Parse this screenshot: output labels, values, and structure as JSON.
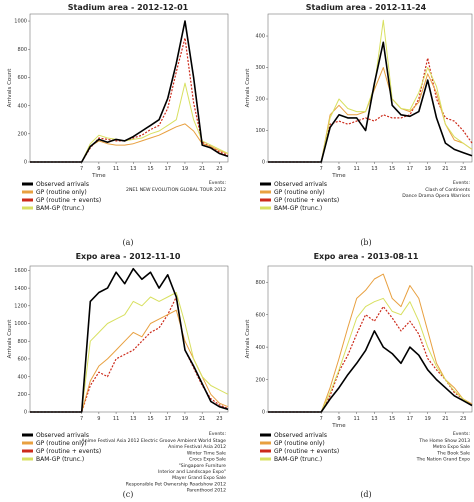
{
  "colors": {
    "observed": "#000000",
    "routine": "#e8a040",
    "events": "#cc2a1a",
    "bam": "#d8e060"
  },
  "chart_data": [
    {
      "type": "line",
      "title": "Stadium area - 2012-12-01",
      "caption": "(a)",
      "xlabel": "Time",
      "ylabel": "Arrivals Count",
      "xlim": [
        1,
        24
      ],
      "ylim": [
        0,
        1050
      ],
      "xticks": [
        "7",
        "9",
        "11",
        "13",
        "15",
        "17",
        "19",
        "21",
        "23"
      ],
      "yticks": [
        "0",
        "200",
        "400",
        "600",
        "800",
        "1000"
      ],
      "legend": [
        "Observed arrivals",
        "GP (routine only)",
        "GP (routine + events)",
        "BAM-GP (trunc.)"
      ],
      "events_title": "Events:",
      "events": [
        "2NE1 NEW EVOLUTION GLOBAL TOUR 2012"
      ],
      "x": [
        1,
        7,
        8,
        9,
        10,
        11,
        12,
        13,
        14,
        15,
        16,
        17,
        18,
        19,
        20,
        21,
        22,
        23,
        24
      ],
      "series": [
        {
          "name": "Observed arrivals",
          "values": [
            0,
            0,
            110,
            160,
            140,
            160,
            150,
            180,
            220,
            260,
            300,
            450,
            700,
            1000,
            600,
            120,
            100,
            60,
            40
          ]
        },
        {
          "name": "GP (routine only)",
          "values": [
            0,
            0,
            110,
            150,
            130,
            120,
            120,
            130,
            150,
            170,
            190,
            220,
            250,
            270,
            220,
            130,
            110,
            80,
            60
          ]
        },
        {
          "name": "GP (routine + events)",
          "values": [
            0,
            0,
            100,
            170,
            160,
            150,
            150,
            170,
            190,
            230,
            260,
            380,
            640,
            880,
            420,
            140,
            110,
            70,
            50
          ]
        },
        {
          "name": "BAM-GP (trunc.)",
          "values": [
            0,
            0,
            130,
            190,
            170,
            160,
            150,
            160,
            170,
            200,
            220,
            260,
            300,
            560,
            300,
            150,
            120,
            90,
            60
          ]
        }
      ]
    },
    {
      "type": "line",
      "title": "Stadium area - 2012-11-24",
      "caption": "(b)",
      "xlabel": "Time",
      "ylabel": "Arrivals Count",
      "xlim": [
        1,
        24
      ],
      "ylim": [
        0,
        470
      ],
      "xticks": [
        "7",
        "9",
        "11",
        "13",
        "15",
        "17",
        "19",
        "21",
        "23"
      ],
      "yticks": [
        "0",
        "100",
        "200",
        "300",
        "400"
      ],
      "legend": [
        "Observed arrivals",
        "GP (routine only)",
        "GP (routine + events)",
        "BAM-GP (trunc.)"
      ],
      "events_title": "Events:",
      "events": [
        "Clash of Continents",
        "Dance Drama Opera Warriors"
      ],
      "x": [
        1,
        7,
        8,
        9,
        10,
        11,
        12,
        13,
        14,
        15,
        16,
        17,
        18,
        19,
        20,
        21,
        22,
        23,
        24
      ],
      "series": [
        {
          "name": "Observed arrivals",
          "values": [
            0,
            0,
            110,
            150,
            140,
            140,
            100,
            250,
            380,
            180,
            150,
            145,
            160,
            260,
            140,
            60,
            40,
            30,
            20
          ]
        },
        {
          "name": "GP (routine only)",
          "values": [
            0,
            0,
            150,
            180,
            150,
            150,
            160,
            230,
            300,
            200,
            170,
            160,
            190,
            280,
            220,
            120,
            70,
            60,
            40
          ]
        },
        {
          "name": "GP (routine + events)",
          "values": [
            0,
            0,
            120,
            130,
            120,
            130,
            140,
            130,
            150,
            140,
            140,
            150,
            200,
            330,
            200,
            140,
            130,
            100,
            60
          ]
        },
        {
          "name": "BAM-GP (trunc.)",
          "values": [
            0,
            0,
            140,
            200,
            170,
            160,
            160,
            240,
            450,
            200,
            170,
            165,
            220,
            300,
            240,
            120,
            80,
            60,
            40
          ]
        }
      ]
    },
    {
      "type": "line",
      "title": "Expo area - 2012-11-10",
      "caption": "(c)",
      "xlabel": "",
      "ylabel": "Arrivals Count",
      "xlim": [
        1,
        24
      ],
      "ylim": [
        0,
        1650
      ],
      "xticks": [
        "7",
        "9",
        "11",
        "13",
        "15",
        "17",
        "19",
        "21",
        "23"
      ],
      "yticks": [
        "0",
        "200",
        "400",
        "600",
        "800",
        "1000",
        "1200",
        "1400",
        "1600"
      ],
      "legend": [
        "Observed arrivals",
        "GP (routine only)",
        "GP (routine + events)",
        "BAM-GP (trunc.)"
      ],
      "events_title": "Events:",
      "events": [
        "Anime Festival Asia 2012  Electric Groove Ambient World Stage",
        "Anime Festival Asia 2012",
        "Winter Time Sale",
        "Crocs Expo Sale",
        "\"Singapore Furniture",
        "Interior and Landscape Expo\"",
        "Mayer Grand Expo Sale",
        "Responsible Pet Ownership Roadshow 2012",
        "Parenthood 2012"
      ],
      "x": [
        1,
        7,
        8,
        9,
        10,
        11,
        12,
        13,
        14,
        15,
        16,
        17,
        18,
        19,
        20,
        21,
        22,
        23,
        24
      ],
      "series": [
        {
          "name": "Observed arrivals",
          "values": [
            0,
            0,
            1250,
            1350,
            1400,
            1580,
            1450,
            1620,
            1500,
            1580,
            1400,
            1550,
            1300,
            700,
            520,
            320,
            120,
            60,
            30
          ]
        },
        {
          "name": "GP (routine only)",
          "values": [
            0,
            0,
            350,
            520,
            600,
            700,
            800,
            900,
            850,
            1000,
            1050,
            1100,
            1150,
            800,
            600,
            400,
            200,
            100,
            60
          ]
        },
        {
          "name": "GP (routine + events)",
          "values": [
            0,
            0,
            300,
            450,
            400,
            600,
            650,
            700,
            800,
            900,
            950,
            1100,
            1300,
            700,
            500,
            300,
            150,
            80,
            40
          ]
        },
        {
          "name": "BAM-GP (trunc.)",
          "values": [
            0,
            0,
            800,
            900,
            1000,
            1050,
            1100,
            1250,
            1200,
            1300,
            1250,
            1300,
            1350,
            1000,
            600,
            400,
            300,
            250,
            200
          ]
        }
      ]
    },
    {
      "type": "line",
      "title": "Expo area - 2013-08-11",
      "caption": "(d)",
      "xlabel": "Time",
      "ylabel": "Arrivals Count",
      "xlim": [
        1,
        24
      ],
      "ylim": [
        0,
        900
      ],
      "xticks": [
        "7",
        "9",
        "11",
        "13",
        "15",
        "17",
        "19",
        "21",
        "23"
      ],
      "yticks": [
        "0",
        "200",
        "400",
        "600",
        "800"
      ],
      "legend": [
        "Observed arrivals",
        "GP (routine only)",
        "GP (routine + events)",
        "BAM-GP (trunc.)"
      ],
      "events_title": "Events:",
      "events": [
        "The Home Show 2013",
        "Metro Expo Sale",
        "The Book Sale",
        "The Nation Grand Expo"
      ],
      "x": [
        1,
        7,
        8,
        9,
        10,
        11,
        12,
        13,
        14,
        15,
        16,
        17,
        18,
        19,
        20,
        21,
        22,
        23,
        24
      ],
      "series": [
        {
          "name": "Observed arrivals",
          "values": [
            0,
            0,
            80,
            150,
            230,
            300,
            380,
            500,
            400,
            360,
            300,
            400,
            350,
            260,
            200,
            150,
            100,
            70,
            40
          ]
        },
        {
          "name": "GP (routine only)",
          "values": [
            0,
            0,
            150,
            330,
            520,
            700,
            750,
            820,
            850,
            700,
            650,
            780,
            700,
            500,
            300,
            200,
            150,
            80,
            50
          ]
        },
        {
          "name": "GP (routine + events)",
          "values": [
            0,
            0,
            100,
            250,
            350,
            480,
            600,
            560,
            650,
            580,
            500,
            560,
            480,
            330,
            260,
            200,
            120,
            80,
            40
          ]
        },
        {
          "name": "BAM-GP (trunc.)",
          "values": [
            0,
            0,
            120,
            260,
            420,
            580,
            650,
            680,
            700,
            620,
            600,
            680,
            560,
            400,
            280,
            200,
            130,
            80,
            40
          ]
        }
      ]
    }
  ]
}
